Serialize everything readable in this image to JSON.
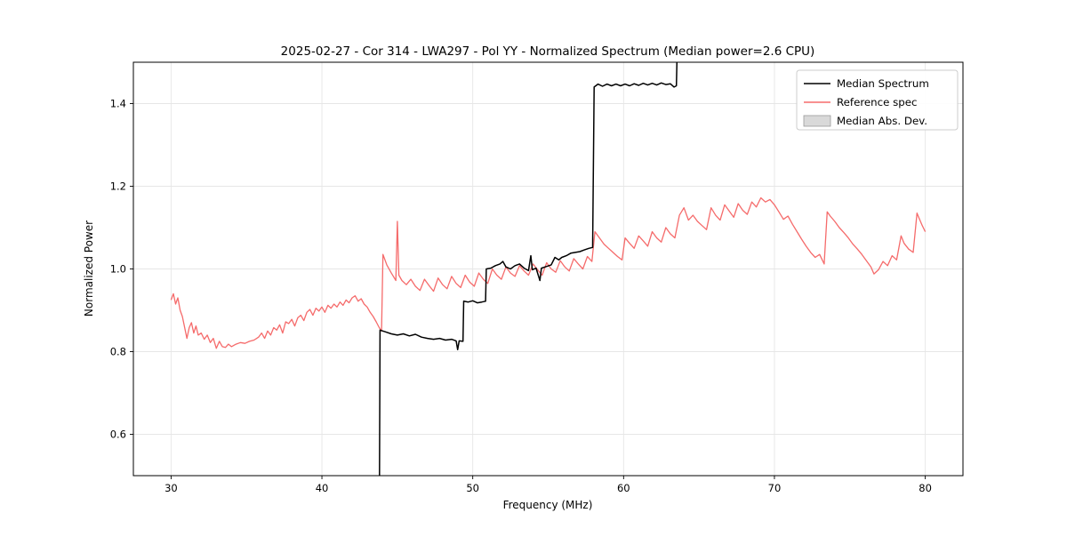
{
  "chart_data": {
    "type": "line",
    "title": "2025-02-27 - Cor 314 - LWA297 - Pol YY - Normalized Spectrum (Median power=2.6 CPU)",
    "xlabel": "Frequency (MHz)",
    "ylabel": "Normalized Power",
    "xlim": [
      27.5,
      82.5
    ],
    "ylim": [
      0.5,
      1.5
    ],
    "xticks": [
      30,
      40,
      50,
      60,
      70,
      80
    ],
    "yticks": [
      0.6,
      0.8,
      1.0,
      1.2,
      1.4
    ],
    "grid": true,
    "legend": {
      "position": "upper right",
      "entries": [
        {
          "label": "Median Spectrum",
          "color": "#000000",
          "kind": "line"
        },
        {
          "label": "Reference spec",
          "color": "#f56b6b",
          "kind": "line"
        },
        {
          "label": "Median Abs. Dev.",
          "color": "#d9d9d9",
          "kind": "patch",
          "edge": "#999999"
        }
      ]
    },
    "series": [
      {
        "name": "Reference spec",
        "color": "#f56b6b",
        "width": 1.3,
        "points": [
          [
            30.0,
            0.925
          ],
          [
            30.15,
            0.94
          ],
          [
            30.3,
            0.915
          ],
          [
            30.45,
            0.93
          ],
          [
            30.6,
            0.9
          ],
          [
            30.75,
            0.885
          ],
          [
            30.9,
            0.858
          ],
          [
            31.05,
            0.832
          ],
          [
            31.2,
            0.858
          ],
          [
            31.35,
            0.87
          ],
          [
            31.5,
            0.845
          ],
          [
            31.65,
            0.862
          ],
          [
            31.8,
            0.84
          ],
          [
            32.0,
            0.845
          ],
          [
            32.2,
            0.83
          ],
          [
            32.4,
            0.84
          ],
          [
            32.6,
            0.822
          ],
          [
            32.8,
            0.832
          ],
          [
            33.0,
            0.808
          ],
          [
            33.2,
            0.825
          ],
          [
            33.4,
            0.812
          ],
          [
            33.6,
            0.81
          ],
          [
            33.8,
            0.818
          ],
          [
            34.0,
            0.812
          ],
          [
            34.3,
            0.818
          ],
          [
            34.6,
            0.822
          ],
          [
            34.9,
            0.82
          ],
          [
            35.2,
            0.825
          ],
          [
            35.5,
            0.828
          ],
          [
            35.8,
            0.835
          ],
          [
            36.0,
            0.845
          ],
          [
            36.2,
            0.832
          ],
          [
            36.4,
            0.85
          ],
          [
            36.6,
            0.84
          ],
          [
            36.8,
            0.858
          ],
          [
            37.0,
            0.852
          ],
          [
            37.2,
            0.865
          ],
          [
            37.4,
            0.845
          ],
          [
            37.6,
            0.872
          ],
          [
            37.8,
            0.868
          ],
          [
            38.0,
            0.878
          ],
          [
            38.2,
            0.862
          ],
          [
            38.4,
            0.882
          ],
          [
            38.6,
            0.888
          ],
          [
            38.8,
            0.875
          ],
          [
            39.0,
            0.895
          ],
          [
            39.2,
            0.902
          ],
          [
            39.4,
            0.888
          ],
          [
            39.6,
            0.905
          ],
          [
            39.8,
            0.898
          ],
          [
            40.0,
            0.908
          ],
          [
            40.2,
            0.895
          ],
          [
            40.4,
            0.912
          ],
          [
            40.6,
            0.905
          ],
          [
            40.8,
            0.915
          ],
          [
            41.0,
            0.908
          ],
          [
            41.2,
            0.92
          ],
          [
            41.4,
            0.912
          ],
          [
            41.6,
            0.925
          ],
          [
            41.8,
            0.918
          ],
          [
            42.0,
            0.93
          ],
          [
            42.2,
            0.935
          ],
          [
            42.4,
            0.922
          ],
          [
            42.6,
            0.928
          ],
          [
            42.8,
            0.915
          ],
          [
            43.0,
            0.908
          ],
          [
            43.2,
            0.895
          ],
          [
            43.4,
            0.885
          ],
          [
            43.6,
            0.872
          ],
          [
            43.8,
            0.858
          ],
          [
            43.95,
            0.85
          ],
          [
            44.05,
            1.035
          ],
          [
            44.3,
            1.01
          ],
          [
            44.6,
            0.99
          ],
          [
            44.9,
            0.972
          ],
          [
            45.0,
            1.115
          ],
          [
            45.1,
            0.985
          ],
          [
            45.3,
            0.972
          ],
          [
            45.6,
            0.962
          ],
          [
            45.9,
            0.975
          ],
          [
            46.2,
            0.958
          ],
          [
            46.5,
            0.948
          ],
          [
            46.8,
            0.975
          ],
          [
            47.1,
            0.96
          ],
          [
            47.4,
            0.946
          ],
          [
            47.7,
            0.978
          ],
          [
            48.0,
            0.962
          ],
          [
            48.3,
            0.952
          ],
          [
            48.6,
            0.982
          ],
          [
            48.9,
            0.965
          ],
          [
            49.2,
            0.955
          ],
          [
            49.5,
            0.985
          ],
          [
            49.8,
            0.968
          ],
          [
            50.1,
            0.958
          ],
          [
            50.4,
            0.99
          ],
          [
            50.7,
            0.975
          ],
          [
            51.0,
            0.965
          ],
          [
            51.3,
            1.0
          ],
          [
            51.6,
            0.985
          ],
          [
            51.9,
            0.975
          ],
          [
            52.2,
            1.005
          ],
          [
            52.5,
            0.99
          ],
          [
            52.8,
            0.982
          ],
          [
            53.1,
            1.008
          ],
          [
            53.4,
            0.995
          ],
          [
            53.7,
            0.985
          ],
          [
            54.0,
            1.012
          ],
          [
            54.3,
            0.998
          ],
          [
            54.6,
            0.985
          ],
          [
            54.9,
            1.015
          ],
          [
            55.2,
            1.0
          ],
          [
            55.5,
            0.992
          ],
          [
            55.8,
            1.02
          ],
          [
            56.1,
            1.005
          ],
          [
            56.4,
            0.995
          ],
          [
            56.7,
            1.025
          ],
          [
            57.0,
            1.012
          ],
          [
            57.3,
            1.0
          ],
          [
            57.6,
            1.03
          ],
          [
            57.9,
            1.018
          ],
          [
            58.1,
            1.09
          ],
          [
            58.4,
            1.075
          ],
          [
            58.7,
            1.06
          ],
          [
            59.0,
            1.05
          ],
          [
            59.3,
            1.04
          ],
          [
            59.6,
            1.03
          ],
          [
            59.9,
            1.022
          ],
          [
            60.1,
            1.075
          ],
          [
            60.4,
            1.062
          ],
          [
            60.7,
            1.05
          ],
          [
            61.0,
            1.08
          ],
          [
            61.3,
            1.068
          ],
          [
            61.6,
            1.055
          ],
          [
            61.9,
            1.09
          ],
          [
            62.2,
            1.075
          ],
          [
            62.5,
            1.065
          ],
          [
            62.8,
            1.1
          ],
          [
            63.1,
            1.085
          ],
          [
            63.4,
            1.075
          ],
          [
            63.7,
            1.13
          ],
          [
            64.0,
            1.148
          ],
          [
            64.3,
            1.118
          ],
          [
            64.6,
            1.13
          ],
          [
            64.9,
            1.115
          ],
          [
            65.2,
            1.105
          ],
          [
            65.5,
            1.095
          ],
          [
            65.8,
            1.148
          ],
          [
            66.1,
            1.13
          ],
          [
            66.4,
            1.118
          ],
          [
            66.7,
            1.155
          ],
          [
            67.0,
            1.14
          ],
          [
            67.3,
            1.125
          ],
          [
            67.6,
            1.158
          ],
          [
            67.9,
            1.142
          ],
          [
            68.2,
            1.132
          ],
          [
            68.5,
            1.162
          ],
          [
            68.8,
            1.15
          ],
          [
            69.1,
            1.172
          ],
          [
            69.4,
            1.162
          ],
          [
            69.7,
            1.168
          ],
          [
            70.0,
            1.155
          ],
          [
            70.3,
            1.138
          ],
          [
            70.6,
            1.12
          ],
          [
            70.9,
            1.128
          ],
          [
            71.2,
            1.108
          ],
          [
            71.5,
            1.09
          ],
          [
            71.8,
            1.072
          ],
          [
            72.1,
            1.055
          ],
          [
            72.4,
            1.04
          ],
          [
            72.7,
            1.028
          ],
          [
            73.0,
            1.035
          ],
          [
            73.3,
            1.012
          ],
          [
            73.5,
            1.138
          ],
          [
            73.7,
            1.128
          ],
          [
            74.0,
            1.115
          ],
          [
            74.3,
            1.1
          ],
          [
            74.6,
            1.088
          ],
          [
            74.9,
            1.075
          ],
          [
            75.2,
            1.06
          ],
          [
            75.5,
            1.048
          ],
          [
            75.8,
            1.035
          ],
          [
            76.1,
            1.02
          ],
          [
            76.4,
            1.005
          ],
          [
            76.6,
            0.988
          ],
          [
            76.9,
            0.998
          ],
          [
            77.2,
            1.018
          ],
          [
            77.5,
            1.008
          ],
          [
            77.8,
            1.032
          ],
          [
            78.1,
            1.022
          ],
          [
            78.4,
            1.08
          ],
          [
            78.6,
            1.062
          ],
          [
            78.9,
            1.048
          ],
          [
            79.2,
            1.04
          ],
          [
            79.45,
            1.135
          ],
          [
            79.6,
            1.122
          ],
          [
            79.8,
            1.105
          ],
          [
            80.0,
            1.09
          ]
        ]
      },
      {
        "name": "Median Spectrum",
        "color": "#000000",
        "width": 1.5,
        "points": [
          [
            43.82,
            0.5
          ],
          [
            43.85,
            0.852
          ],
          [
            44.2,
            0.848
          ],
          [
            44.6,
            0.843
          ],
          [
            45.0,
            0.84
          ],
          [
            45.4,
            0.843
          ],
          [
            45.8,
            0.838
          ],
          [
            46.2,
            0.842
          ],
          [
            46.6,
            0.835
          ],
          [
            47.0,
            0.832
          ],
          [
            47.4,
            0.83
          ],
          [
            47.8,
            0.832
          ],
          [
            48.2,
            0.828
          ],
          [
            48.6,
            0.83
          ],
          [
            48.9,
            0.826
          ],
          [
            49.0,
            0.805
          ],
          [
            49.1,
            0.826
          ],
          [
            49.35,
            0.825
          ],
          [
            49.4,
            0.922
          ],
          [
            49.7,
            0.92
          ],
          [
            50.0,
            0.923
          ],
          [
            50.3,
            0.918
          ],
          [
            50.6,
            0.92
          ],
          [
            50.85,
            0.922
          ],
          [
            50.9,
            1.0
          ],
          [
            51.2,
            1.002
          ],
          [
            51.5,
            1.008
          ],
          [
            51.8,
            1.012
          ],
          [
            52.0,
            1.018
          ],
          [
            52.2,
            1.005
          ],
          [
            52.5,
            1.0
          ],
          [
            52.8,
            1.008
          ],
          [
            53.1,
            1.012
          ],
          [
            53.4,
            1.002
          ],
          [
            53.7,
            0.996
          ],
          [
            53.85,
            1.032
          ],
          [
            53.95,
            0.998
          ],
          [
            54.2,
            1.002
          ],
          [
            54.45,
            0.972
          ],
          [
            54.55,
            1.002
          ],
          [
            54.9,
            1.006
          ],
          [
            55.2,
            1.01
          ],
          [
            55.45,
            1.028
          ],
          [
            55.7,
            1.022
          ],
          [
            55.9,
            1.028
          ],
          [
            56.2,
            1.032
          ],
          [
            56.5,
            1.038
          ],
          [
            56.8,
            1.04
          ],
          [
            57.1,
            1.042
          ],
          [
            57.4,
            1.046
          ],
          [
            57.7,
            1.05
          ],
          [
            57.95,
            1.052
          ],
          [
            58.05,
            1.44
          ],
          [
            58.3,
            1.447
          ],
          [
            58.6,
            1.442
          ],
          [
            58.9,
            1.447
          ],
          [
            59.2,
            1.443
          ],
          [
            59.5,
            1.447
          ],
          [
            59.8,
            1.443
          ],
          [
            60.1,
            1.447
          ],
          [
            60.4,
            1.443
          ],
          [
            60.7,
            1.448
          ],
          [
            61.0,
            1.444
          ],
          [
            61.3,
            1.449
          ],
          [
            61.6,
            1.445
          ],
          [
            61.9,
            1.449
          ],
          [
            62.2,
            1.445
          ],
          [
            62.5,
            1.45
          ],
          [
            62.8,
            1.446
          ],
          [
            63.1,
            1.448
          ],
          [
            63.35,
            1.44
          ],
          [
            63.5,
            1.443
          ],
          [
            63.55,
            1.52
          ]
        ]
      }
    ]
  }
}
